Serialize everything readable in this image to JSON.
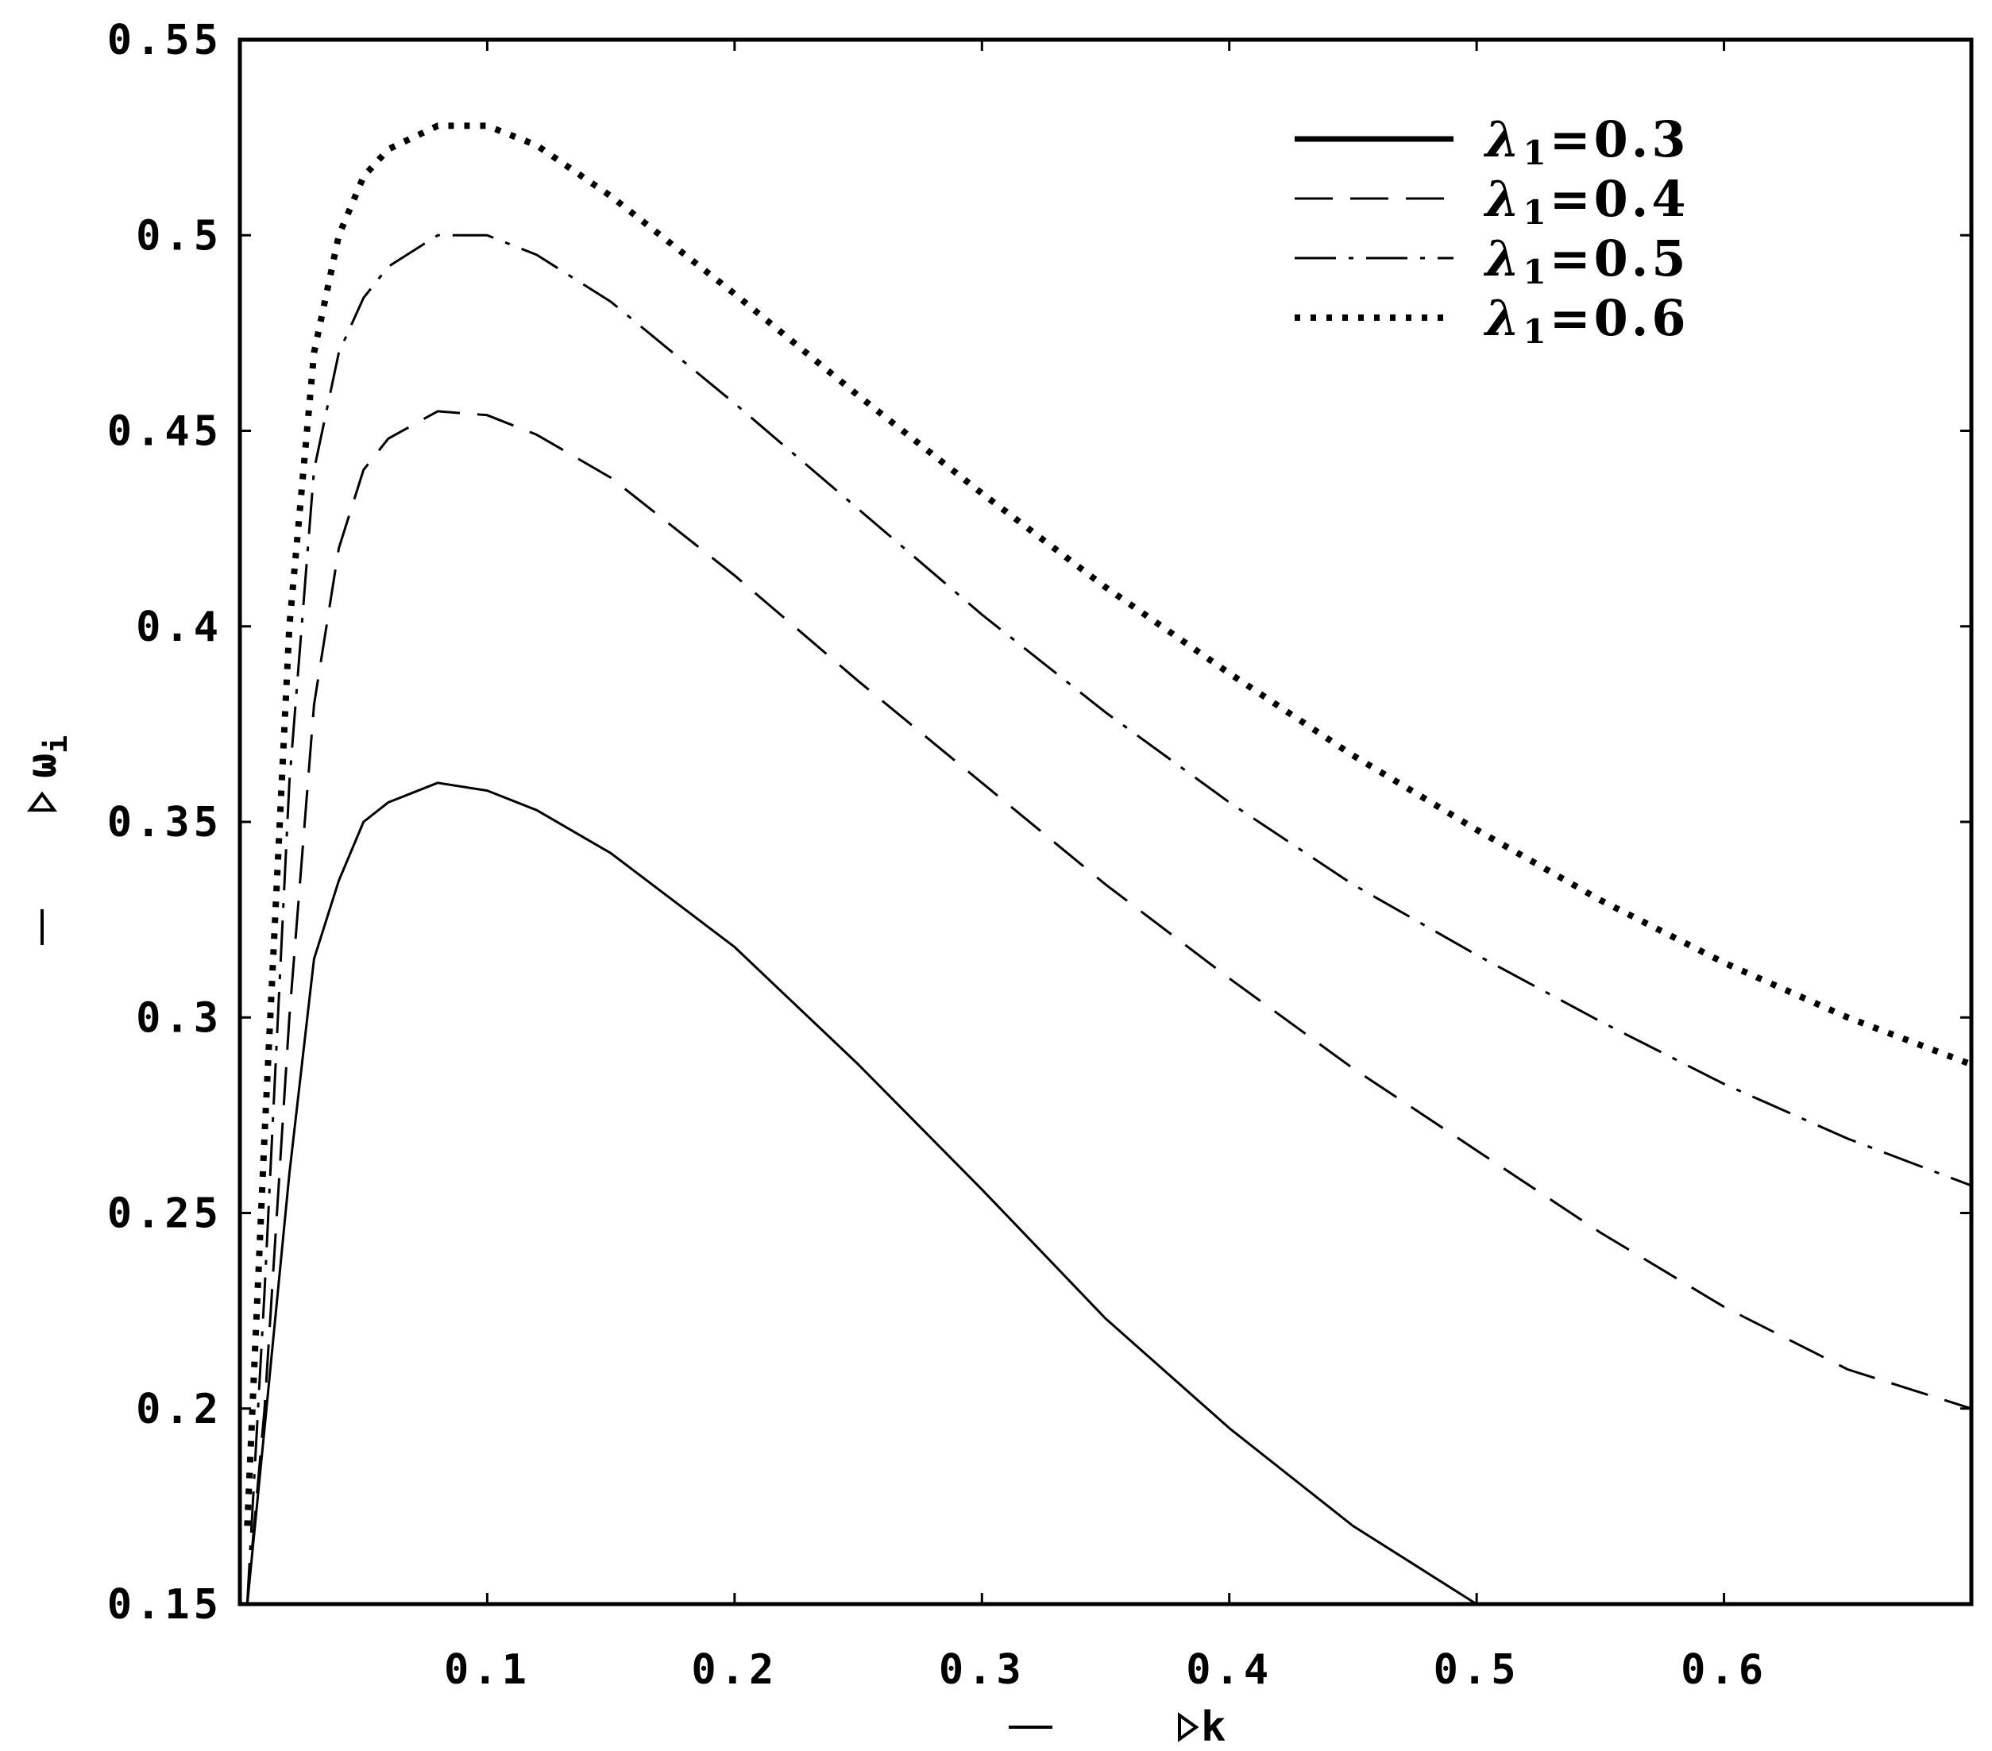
{
  "chart_data": {
    "type": "line",
    "title": "",
    "xlabel": "k",
    "ylabel": "ω",
    "ylabel_subscript": "i",
    "xlim": [
      0.0,
      0.7
    ],
    "ylim": [
      0.15,
      0.55
    ],
    "grid": false,
    "legend_position": "top-right",
    "x_ticks": [
      {
        "value": 0.1,
        "label": "0.1"
      },
      {
        "value": 0.2,
        "label": "0.2"
      },
      {
        "value": 0.3,
        "label": "0.3"
      },
      {
        "value": 0.4,
        "label": "0.4"
      },
      {
        "value": 0.5,
        "label": "0.5"
      },
      {
        "value": 0.6,
        "label": "0.6"
      }
    ],
    "y_ticks": [
      {
        "value": 0.15,
        "label": "0.15"
      },
      {
        "value": 0.2,
        "label": "0.2"
      },
      {
        "value": 0.25,
        "label": "0.25"
      },
      {
        "value": 0.3,
        "label": "0.3"
      },
      {
        "value": 0.35,
        "label": "0.35"
      },
      {
        "value": 0.4,
        "label": "0.4"
      },
      {
        "value": 0.45,
        "label": "0.45"
      },
      {
        "value": 0.5,
        "label": "0.5"
      },
      {
        "value": 0.55,
        "label": "0.55"
      }
    ],
    "series": [
      {
        "name": "λ1=0.3",
        "label_symbol": "λ",
        "label_subscript": "1",
        "label_value": "=0.3",
        "style": "solid",
        "x": [
          0.003,
          0.01,
          0.02,
          0.03,
          0.04,
          0.05,
          0.06,
          0.08,
          0.1,
          0.12,
          0.15,
          0.2,
          0.25,
          0.3,
          0.35,
          0.4,
          0.45,
          0.5,
          0.525
        ],
        "y": [
          0.15,
          0.195,
          0.26,
          0.315,
          0.335,
          0.35,
          0.355,
          0.36,
          0.358,
          0.353,
          0.342,
          0.318,
          0.288,
          0.256,
          0.223,
          0.195,
          0.17,
          0.15,
          0.148
        ]
      },
      {
        "name": "λ1=0.4",
        "label_symbol": "λ",
        "label_subscript": "1",
        "label_value": "=0.4",
        "style": "dashed",
        "x": [
          0.003,
          0.01,
          0.02,
          0.03,
          0.04,
          0.05,
          0.06,
          0.08,
          0.1,
          0.12,
          0.15,
          0.2,
          0.25,
          0.3,
          0.35,
          0.4,
          0.45,
          0.5,
          0.55,
          0.6,
          0.65,
          0.7
        ],
        "y": [
          0.15,
          0.2,
          0.3,
          0.38,
          0.42,
          0.44,
          0.448,
          0.455,
          0.454,
          0.449,
          0.438,
          0.413,
          0.386,
          0.36,
          0.334,
          0.31,
          0.287,
          0.266,
          0.245,
          0.226,
          0.21,
          0.2
        ]
      },
      {
        "name": "λ1=0.5",
        "label_symbol": "λ",
        "label_subscript": "1",
        "label_value": "=0.5",
        "style": "dashdot",
        "x": [
          0.003,
          0.01,
          0.02,
          0.03,
          0.04,
          0.05,
          0.06,
          0.08,
          0.1,
          0.12,
          0.15,
          0.2,
          0.25,
          0.3,
          0.35,
          0.4,
          0.45,
          0.5,
          0.55,
          0.6,
          0.65,
          0.7
        ],
        "y": [
          0.15,
          0.23,
          0.36,
          0.44,
          0.47,
          0.484,
          0.492,
          0.5,
          0.5,
          0.495,
          0.483,
          0.457,
          0.43,
          0.403,
          0.378,
          0.355,
          0.334,
          0.316,
          0.299,
          0.283,
          0.269,
          0.257
        ]
      },
      {
        "name": "λ1=0.6",
        "label_symbol": "λ",
        "label_subscript": "1",
        "label_value": "=0.6",
        "style": "dotted",
        "x": [
          0.003,
          0.01,
          0.02,
          0.03,
          0.04,
          0.05,
          0.06,
          0.08,
          0.1,
          0.12,
          0.15,
          0.2,
          0.25,
          0.3,
          0.35,
          0.4,
          0.45,
          0.5,
          0.55,
          0.6,
          0.65,
          0.7
        ],
        "y": [
          0.17,
          0.27,
          0.4,
          0.47,
          0.5,
          0.515,
          0.522,
          0.528,
          0.528,
          0.523,
          0.51,
          0.485,
          0.459,
          0.434,
          0.41,
          0.388,
          0.367,
          0.348,
          0.33,
          0.314,
          0.3,
          0.288
        ]
      }
    ]
  }
}
